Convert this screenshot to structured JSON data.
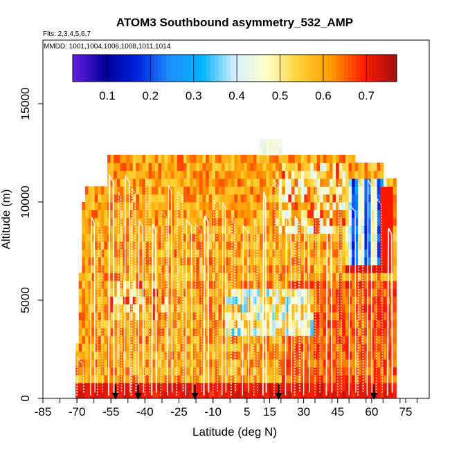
{
  "chart_data": {
    "type": "heatmap",
    "title": "ATOM3 Southbound asymmetry_532_AMP",
    "subtitle_flights": "Flts: 2,3,4,5,6,7",
    "subtitle_dates": "MMDD: 1001,1004,1006,1008,1011,1014",
    "xlabel": "Latitude (deg N)",
    "ylabel": "Altitude (m)",
    "xlim": [
      -85,
      85
    ],
    "ylim": [
      0,
      18000
    ],
    "x_ticks": [
      -85,
      -70,
      -55,
      -40,
      -25,
      -10,
      5,
      15,
      30,
      45,
      60,
      75
    ],
    "x_tick_labels": [
      "-85",
      "-70",
      "-55",
      "-40",
      "-25",
      "-10",
      "5",
      "15",
      "30",
      "45",
      "60",
      "75"
    ],
    "y_ticks": [
      0,
      5000,
      10000,
      15000
    ],
    "y_tick_labels": [
      "0",
      "5000",
      "10000",
      "15000"
    ],
    "colorbar": {
      "range": [
        0.02,
        0.77
      ],
      "ticks": [
        0.1,
        0.2,
        0.3,
        0.4,
        0.5,
        0.6,
        0.7
      ],
      "tick_labels": [
        "0.1",
        "0.2",
        "0.3",
        "0.4",
        "0.5",
        "0.6",
        "0.7"
      ],
      "colors": [
        "#6a1fe0",
        "#000099",
        "#0022dd",
        "#1e90ff",
        "#00b4ff",
        "#d8f0ff",
        "#ffffc8",
        "#ffd030",
        "#ff9800",
        "#ff1a00",
        "#a01010"
      ]
    },
    "arrow_latitudes": [
      -53,
      -43,
      -18,
      19,
      61
    ],
    "value_scale_note": "asymmetry parameter values mostly 0.5-0.75; low values (0.1-0.35) near 50-65N at 7-11 km"
  }
}
